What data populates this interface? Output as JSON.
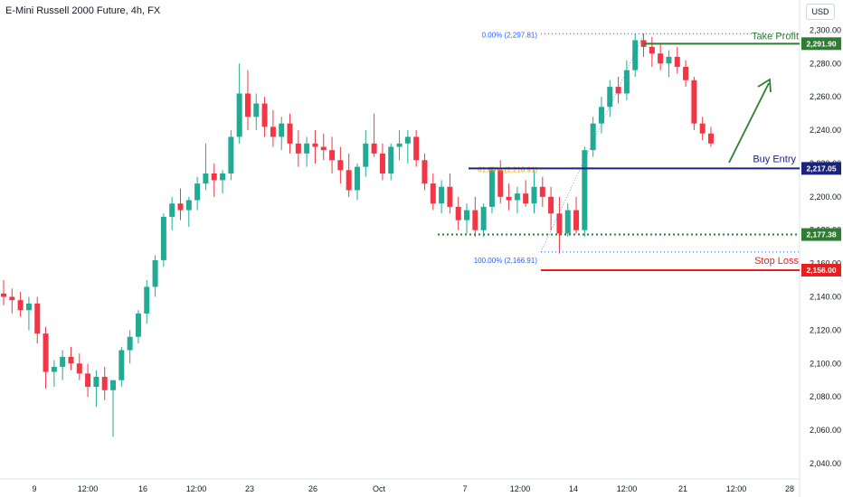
{
  "header": {
    "symbol_title": "E-Mini Russell 2000 Future, 4h, FX",
    "currency": "USD"
  },
  "chart_data": {
    "type": "candlestick",
    "title": "E-Mini Russell 2000 Future, 4h, FX",
    "y_ticks": [
      "2,300.00",
      "2,280.00",
      "2,260.00",
      "2,240.00",
      "2,220.00",
      "2,200.00",
      "2,180.00",
      "2,160.00",
      "2,140.00",
      "2,120.00",
      "2,100.00",
      "2,080.00",
      "2,060.00",
      "2,040.00"
    ],
    "y_tick_values": [
      2300,
      2280,
      2260,
      2240,
      2220,
      2200,
      2180,
      2160,
      2140,
      2120,
      2100,
      2080,
      2060,
      2040
    ],
    "ylim": [
      2034,
      2304
    ],
    "x_ticks": [
      "9",
      "12:00",
      "16",
      "12:00",
      "23",
      "26",
      "Oct",
      "7",
      "12:00",
      "14",
      "12:00",
      "21",
      "12:00",
      "28"
    ],
    "colors": {
      "up": "#22ab94",
      "down": "#f23645",
      "take_profit": "#2e7d32",
      "entry": "#1a237e",
      "stop": "#e91e1e",
      "fib": "#2962ff",
      "fib_label": "#2962ff",
      "fib_mid": "#ff9800"
    },
    "levels": [
      {
        "name": "Take Profit",
        "value": 2291.9,
        "label": "2,291.90",
        "color": "#2e7d32",
        "style": "solid"
      },
      {
        "name": "Buy Entry",
        "value": 2217.05,
        "label": "2,217.05",
        "color": "#1a237e",
        "style": "solid"
      },
      {
        "name": "",
        "value": 2177.38,
        "label": "2,177.38",
        "color": "#2e7d32",
        "style": "dotted"
      },
      {
        "name": "Stop Loss",
        "value": 2156.0,
        "label": "2,156.00",
        "color": "#e91e1e",
        "style": "solid"
      }
    ],
    "fibonacci": [
      {
        "text": "0.00% (2,297.81)",
        "value": 2297.81
      },
      {
        "text": "61.80% (2,216.91)",
        "value": 2216.91
      },
      {
        "text": "100.00% (2,166.91)",
        "value": 2166.91
      }
    ],
    "candles": [
      [
        2142,
        2150,
        2135,
        2140
      ],
      [
        2140,
        2145,
        2130,
        2138
      ],
      [
        2138,
        2143,
        2128,
        2132
      ],
      [
        2132,
        2140,
        2120,
        2136
      ],
      [
        2136,
        2140,
        2112,
        2118
      ],
      [
        2118,
        2122,
        2085,
        2095
      ],
      [
        2095,
        2102,
        2086,
        2098
      ],
      [
        2098,
        2108,
        2090,
        2104
      ],
      [
        2104,
        2110,
        2096,
        2100
      ],
      [
        2100,
        2106,
        2090,
        2094
      ],
      [
        2094,
        2100,
        2080,
        2086
      ],
      [
        2086,
        2096,
        2074,
        2092
      ],
      [
        2092,
        2098,
        2078,
        2084
      ],
      [
        2084,
        2090,
        2056,
        2090
      ],
      [
        2090,
        2110,
        2086,
        2108
      ],
      [
        2108,
        2120,
        2100,
        2116
      ],
      [
        2116,
        2132,
        2112,
        2130
      ],
      [
        2130,
        2150,
        2124,
        2146
      ],
      [
        2146,
        2165,
        2140,
        2162
      ],
      [
        2162,
        2190,
        2158,
        2188
      ],
      [
        2188,
        2200,
        2180,
        2196
      ],
      [
        2196,
        2205,
        2186,
        2192
      ],
      [
        2192,
        2200,
        2182,
        2198
      ],
      [
        2198,
        2212,
        2192,
        2208
      ],
      [
        2208,
        2232,
        2204,
        2214
      ],
      [
        2214,
        2220,
        2200,
        2210
      ],
      [
        2210,
        2216,
        2202,
        2214
      ],
      [
        2214,
        2240,
        2210,
        2236
      ],
      [
        2236,
        2280,
        2232,
        2262
      ],
      [
        2262,
        2276,
        2240,
        2248
      ],
      [
        2248,
        2262,
        2240,
        2256
      ],
      [
        2256,
        2260,
        2236,
        2242
      ],
      [
        2242,
        2252,
        2230,
        2236
      ],
      [
        2236,
        2248,
        2228,
        2244
      ],
      [
        2244,
        2250,
        2226,
        2232
      ],
      [
        2232,
        2240,
        2218,
        2226
      ],
      [
        2226,
        2236,
        2218,
        2232
      ],
      [
        2232,
        2240,
        2220,
        2230
      ],
      [
        2230,
        2238,
        2222,
        2228
      ],
      [
        2228,
        2236,
        2214,
        2222
      ],
      [
        2222,
        2230,
        2208,
        2216
      ],
      [
        2216,
        2226,
        2200,
        2204
      ],
      [
        2204,
        2220,
        2198,
        2218
      ],
      [
        2218,
        2240,
        2212,
        2232
      ],
      [
        2232,
        2250,
        2224,
        2226
      ],
      [
        2226,
        2232,
        2210,
        2214
      ],
      [
        2214,
        2232,
        2210,
        2230
      ],
      [
        2230,
        2240,
        2222,
        2232
      ],
      [
        2232,
        2240,
        2220,
        2236
      ],
      [
        2236,
        2240,
        2218,
        2222
      ],
      [
        2222,
        2226,
        2204,
        2208
      ],
      [
        2208,
        2214,
        2192,
        2196
      ],
      [
        2196,
        2210,
        2190,
        2206
      ],
      [
        2206,
        2214,
        2190,
        2194
      ],
      [
        2194,
        2200,
        2180,
        2186
      ],
      [
        2186,
        2196,
        2178,
        2192
      ],
      [
        2192,
        2200,
        2176,
        2180
      ],
      [
        2180,
        2196,
        2176,
        2194
      ],
      [
        2194,
        2218,
        2190,
        2216
      ],
      [
        2216,
        2222,
        2196,
        2200
      ],
      [
        2200,
        2208,
        2192,
        2198
      ],
      [
        2198,
        2206,
        2190,
        2202
      ],
      [
        2202,
        2210,
        2194,
        2196
      ],
      [
        2196,
        2216,
        2190,
        2206
      ],
      [
        2206,
        2212,
        2194,
        2200
      ],
      [
        2200,
        2206,
        2180,
        2190
      ],
      [
        2190,
        2200,
        2166,
        2178
      ],
      [
        2178,
        2196,
        2176,
        2192
      ],
      [
        2192,
        2200,
        2178,
        2180
      ],
      [
        2180,
        2230,
        2176,
        2228
      ],
      [
        2228,
        2248,
        2224,
        2244
      ],
      [
        2244,
        2260,
        2238,
        2254
      ],
      [
        2254,
        2270,
        2248,
        2266
      ],
      [
        2266,
        2272,
        2256,
        2262
      ],
      [
        2262,
        2282,
        2258,
        2276
      ],
      [
        2276,
        2298,
        2272,
        2294
      ],
      [
        2294,
        2298,
        2284,
        2290
      ],
      [
        2290,
        2296,
        2278,
        2286
      ],
      [
        2286,
        2292,
        2276,
        2280
      ],
      [
        2280,
        2288,
        2272,
        2284
      ],
      [
        2284,
        2290,
        2274,
        2278
      ],
      [
        2278,
        2282,
        2266,
        2270
      ],
      [
        2270,
        2272,
        2240,
        2244
      ],
      [
        2244,
        2248,
        2234,
        2238
      ],
      [
        2238,
        2242,
        2230,
        2232
      ]
    ]
  },
  "annotations": {
    "take_profit_label": "Take Profit",
    "buy_entry_label": "Buy Entry",
    "stop_loss_label": "Stop Loss"
  }
}
